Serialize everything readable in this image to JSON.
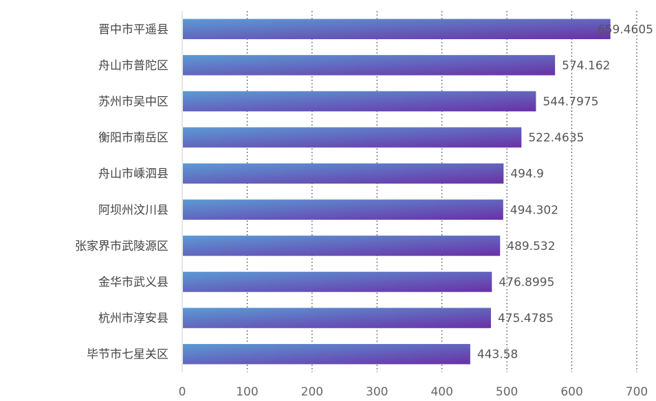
{
  "chart_data": {
    "type": "bar",
    "orientation": "horizontal",
    "categories": [
      "晋中市平遥县",
      "舟山市普陀区",
      "苏州市吴中区",
      "衡阳市南岳区",
      "舟山市嵊泗县",
      "阿坝州汶川县",
      "张家界市武陵源区",
      "金华市武义县",
      "杭州市淳安县",
      "毕节市七星关区"
    ],
    "values": [
      659.4605,
      574.162,
      544.7975,
      522.4635,
      494.9,
      494.302,
      489.532,
      476.8995,
      475.4785,
      443.58
    ],
    "value_labels": [
      "659.4605",
      "574.162",
      "544.7975",
      "522.4635",
      "494.9",
      "494.302",
      "489.532",
      "476.8995",
      "475.4785",
      "443.58"
    ],
    "xlim": [
      0,
      700
    ],
    "xticks": [
      "0",
      "100",
      "200",
      "300",
      "400",
      "500",
      "600",
      "700"
    ],
    "grid": "vertical dotted",
    "bar_gradient": [
      "#5b9bd5",
      "#6a30a6"
    ]
  }
}
